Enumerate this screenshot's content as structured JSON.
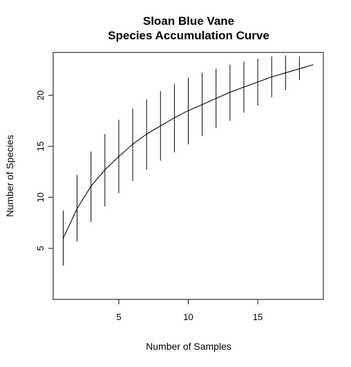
{
  "chart_data": {
    "type": "line",
    "title": "Sloan Blue Vane",
    "subtitle": "Species Accumulation Curve",
    "xlabel": "Number of Samples",
    "ylabel": "Number of Species",
    "xlim": [
      0.28,
      19.72
    ],
    "ylim": [
      0,
      24.2
    ],
    "xticks": [
      5,
      10,
      15
    ],
    "yticks": [
      5,
      10,
      15,
      20
    ],
    "grid": false,
    "legend": "none",
    "line_color": "#000000",
    "series": [
      {
        "x": [
          1,
          2,
          3,
          4,
          5,
          6,
          7,
          8,
          9,
          10,
          11,
          12,
          13,
          14,
          15,
          16,
          17,
          18,
          19
        ],
        "values": [
          6.0,
          8.9,
          11.1,
          12.7,
          14.0,
          15.2,
          16.2,
          17.0,
          17.8,
          18.5,
          19.1,
          19.7,
          20.3,
          20.8,
          21.3,
          21.8,
          22.2,
          22.6,
          23.0
        ],
        "lower": [
          3.3,
          5.7,
          7.6,
          9.1,
          10.4,
          11.6,
          12.7,
          13.6,
          14.4,
          15.2,
          16.0,
          16.8,
          17.5,
          18.3,
          19.0,
          19.8,
          20.5,
          21.5,
          null
        ],
        "upper": [
          8.7,
          12.2,
          14.5,
          16.2,
          17.6,
          18.7,
          19.6,
          20.4,
          21.1,
          21.7,
          22.2,
          22.6,
          23.0,
          23.3,
          23.6,
          23.8,
          23.9,
          23.8,
          null
        ]
      }
    ]
  }
}
